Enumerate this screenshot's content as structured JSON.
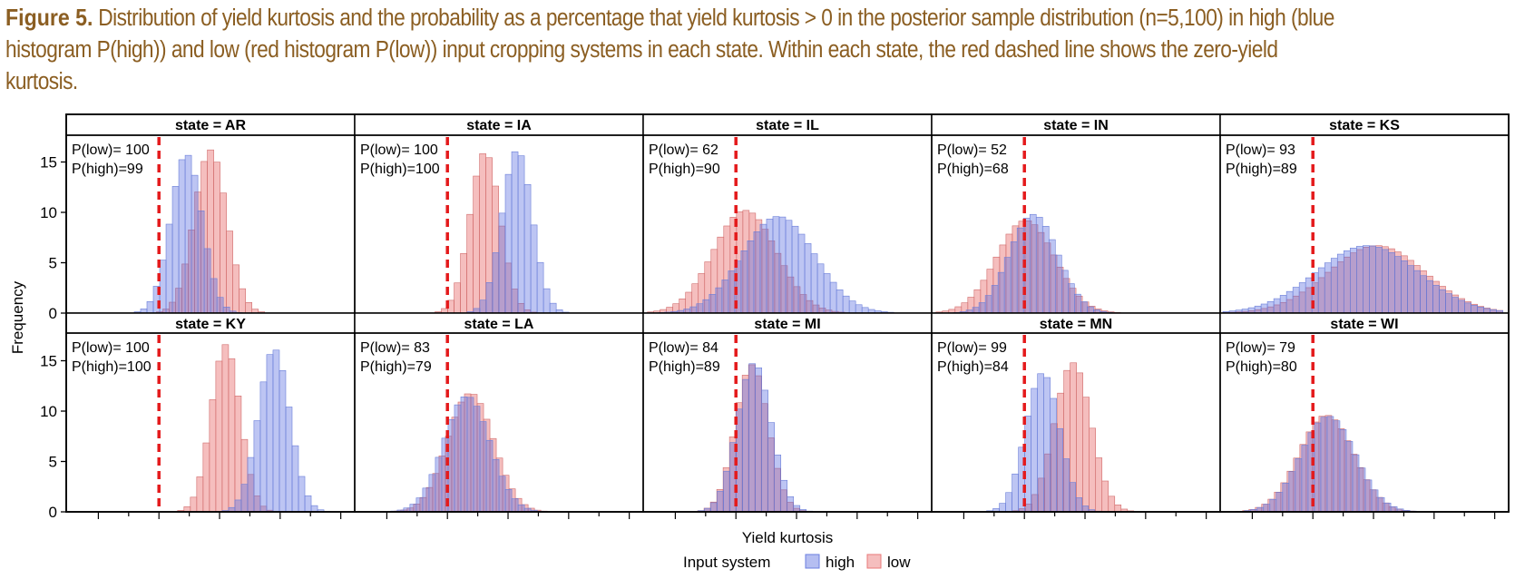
{
  "caption": {
    "label": "Figure 5.",
    "text": "Distribution of yield kurtosis and the probability as a percentage that yield kurtosis > 0 in the posterior sample distribution (n=5,100) in high (blue histogram P(high)) and low (red histogram P(low)) input cropping systems in each state. Within each state, the red dashed line shows the zero-yield kurtosis."
  },
  "chart_data": {
    "type": "histogram",
    "xlabel": "Yield kurtosis",
    "ylabel": "Frequency",
    "y_ticks": [
      "0",
      "5",
      "10",
      "15"
    ],
    "ylim": [
      0,
      17
    ],
    "x_ticks_unlabeled": true,
    "reference_line": {
      "x": 0,
      "style": "red dashed",
      "color": "#E41A1C"
    },
    "legend": {
      "title": "Input system",
      "position": "bottom",
      "entries": [
        {
          "name": "high",
          "color": "#6B7FE0"
        },
        {
          "name": "low",
          "color": "#E97979"
        }
      ]
    },
    "panels": [
      {
        "state": "AR",
        "strip": "state = AR",
        "p_low": "100",
        "p_high": "99",
        "high": {
          "mean": 0.45,
          "sd": 0.26,
          "peak": 15.8
        },
        "low": {
          "mean": 0.85,
          "sd": 0.27,
          "peak": 16.2
        }
      },
      {
        "state": "IA",
        "strip": "state = IA",
        "p_low": "100",
        "p_high": "100",
        "high": {
          "mean": 1.15,
          "sd": 0.25,
          "peak": 16.2
        },
        "low": {
          "mean": 0.62,
          "sd": 0.25,
          "peak": 16.0
        }
      },
      {
        "state": "IL",
        "strip": "state = IL",
        "p_low": "62",
        "p_high": "90",
        "high": {
          "mean": 0.7,
          "sd": 0.6,
          "peak": 9.6
        },
        "low": {
          "mean": 0.15,
          "sd": 0.52,
          "peak": 10.2
        }
      },
      {
        "state": "IN",
        "strip": "state = IN",
        "p_low": "52",
        "p_high": "68",
        "high": {
          "mean": 0.15,
          "sd": 0.4,
          "peak": 9.8
        },
        "low": {
          "mean": 0.02,
          "sd": 0.48,
          "peak": 9.2
        }
      },
      {
        "state": "KS",
        "strip": "state = KS",
        "p_low": "93",
        "p_high": "89",
        "high": {
          "mean": 0.9,
          "sd": 0.85,
          "peak": 6.7
        },
        "low": {
          "mean": 1.05,
          "sd": 0.8,
          "peak": 6.7
        }
      },
      {
        "state": "KY",
        "strip": "state = KY",
        "p_low": "100",
        "p_high": "100",
        "high": {
          "mean": 1.9,
          "sd": 0.26,
          "peak": 16.2
        },
        "low": {
          "mean": 1.1,
          "sd": 0.24,
          "peak": 16.6
        }
      },
      {
        "state": "LA",
        "strip": "state = LA",
        "p_low": "83",
        "p_high": "79",
        "high": {
          "mean": 0.32,
          "sd": 0.38,
          "peak": 11.5
        },
        "low": {
          "mean": 0.38,
          "sd": 0.38,
          "peak": 11.8
        }
      },
      {
        "state": "MI",
        "strip": "state = MI",
        "p_low": "84",
        "p_high": "89",
        "high": {
          "mean": 0.3,
          "sd": 0.28,
          "peak": 14.8
        },
        "low": {
          "mean": 0.26,
          "sd": 0.27,
          "peak": 14.6
        }
      },
      {
        "state": "MN",
        "strip": "state = MN",
        "p_low": "99",
        "p_high": "84",
        "high": {
          "mean": 0.3,
          "sd": 0.28,
          "peak": 13.8
        },
        "low": {
          "mean": 0.8,
          "sd": 0.3,
          "peak": 14.8
        }
      },
      {
        "state": "WI",
        "strip": "state = WI",
        "p_low": "79",
        "p_high": "80",
        "high": {
          "mean": 0.25,
          "sd": 0.45,
          "peak": 9.5
        },
        "low": {
          "mean": 0.22,
          "sd": 0.45,
          "peak": 9.6
        }
      }
    ]
  }
}
